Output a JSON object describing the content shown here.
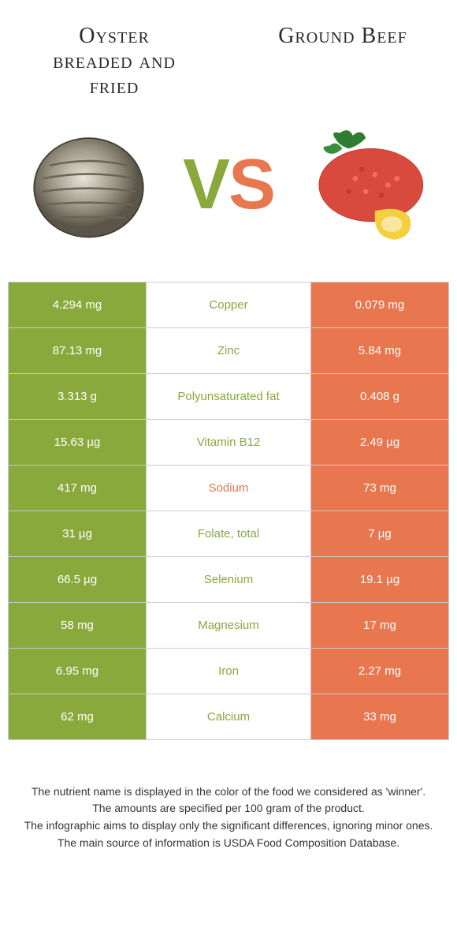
{
  "colors": {
    "left": "#89a93c",
    "right": "#e8764f",
    "text": "#333333",
    "bg": "#ffffff"
  },
  "foodA": {
    "title": "Oyster breaded and fried"
  },
  "foodB": {
    "title": "Ground Beef"
  },
  "vs": {
    "v": "V",
    "s": "S"
  },
  "rows": [
    {
      "nutrient": "Copper",
      "winner": "left",
      "left": "4.294 mg",
      "right": "0.079 mg"
    },
    {
      "nutrient": "Zinc",
      "winner": "left",
      "left": "87.13 mg",
      "right": "5.84 mg"
    },
    {
      "nutrient": "Polyunsaturated fat",
      "winner": "left",
      "left": "3.313 g",
      "right": "0.408 g"
    },
    {
      "nutrient": "Vitamin B12",
      "winner": "left",
      "left": "15.63 µg",
      "right": "2.49 µg"
    },
    {
      "nutrient": "Sodium",
      "winner": "right",
      "left": "417 mg",
      "right": "73 mg"
    },
    {
      "nutrient": "Folate, total",
      "winner": "left",
      "left": "31 µg",
      "right": "7 µg"
    },
    {
      "nutrient": "Selenium",
      "winner": "left",
      "left": "66.5 µg",
      "right": "19.1 µg"
    },
    {
      "nutrient": "Magnesium",
      "winner": "left",
      "left": "58 mg",
      "right": "17 mg"
    },
    {
      "nutrient": "Iron",
      "winner": "left",
      "left": "6.95 mg",
      "right": "2.27 mg"
    },
    {
      "nutrient": "Calcium",
      "winner": "left",
      "left": "62 mg",
      "right": "33 mg"
    }
  ],
  "footer": {
    "l1": "The nutrient name is displayed in the color of the food we considered as 'winner'.",
    "l2": "The amounts are specified per 100 gram of the product.",
    "l3": "The infographic aims to display only the significant differences, ignoring minor ones.",
    "l4": "The main source of information is USDA Food Composition Database."
  }
}
